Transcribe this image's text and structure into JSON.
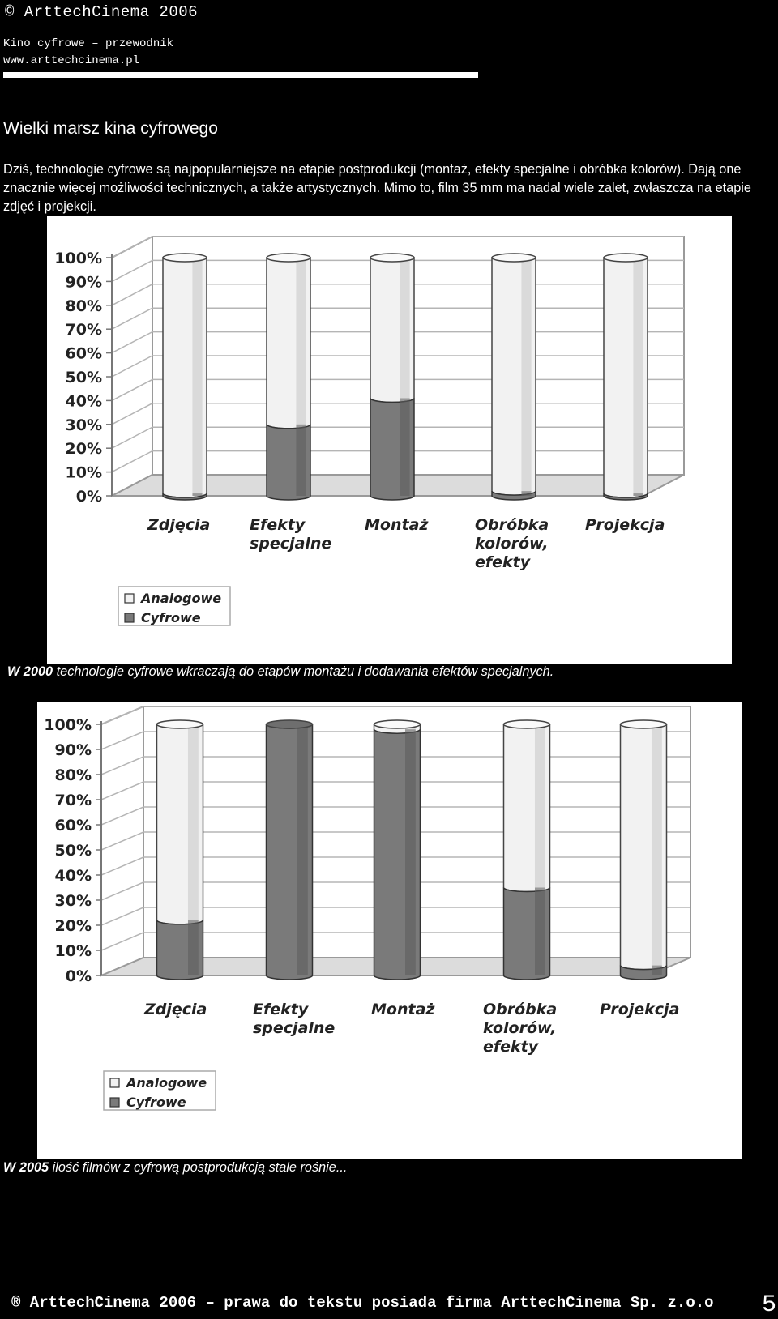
{
  "header": {
    "copyright": "© ArttechCinema 2006",
    "subtitle": "Kino cyfrowe – przewodnik",
    "website": "www.arttechcinema.pl"
  },
  "section_title": "Wielki marsz kina cyfrowego",
  "intro_text": "Dziś, technologie cyfrowe są najpopularniejsze na etapie postprodukcji (montaż, efekty specjalne i obróbka kolorów). Dają one znacznie więcej możliwości technicznych, a także artystycznych. Mimo to, film 35 mm ma nadal wiele zalet, zwłaszcza na etapie zdjęć i projekcji.",
  "chart_data": [
    {
      "type": "bar",
      "stacked": true,
      "style": "3d-cylinder",
      "categories": [
        [
          "Zdjęcia"
        ],
        [
          "Efekty",
          "specjalne"
        ],
        [
          "Montaż"
        ],
        [
          "Obróbka",
          "kolorów,",
          "efekty"
        ],
        [
          "Projekcja"
        ]
      ],
      "series": [
        {
          "name": "Cyfrowe",
          "values": [
            1,
            30,
            41,
            2,
            1
          ]
        },
        {
          "name": "Analogowe",
          "values": [
            99,
            70,
            59,
            98,
            99
          ]
        }
      ],
      "yticks": [
        "0%",
        "10%",
        "20%",
        "30%",
        "40%",
        "50%",
        "60%",
        "70%",
        "80%",
        "90%",
        "100%"
      ],
      "ylim": [
        0,
        100
      ],
      "grid": true,
      "legend": "bottom-left",
      "colors": {
        "Analogowe": "#f2f2f2",
        "Cyfrowe": "#7a7a7a"
      }
    },
    {
      "type": "bar",
      "stacked": true,
      "style": "3d-cylinder",
      "categories": [
        [
          "Zdjęcia"
        ],
        [
          "Efekty",
          "specjalne"
        ],
        [
          "Montaż"
        ],
        [
          "Obróbka",
          "kolorów,",
          "efekty"
        ],
        [
          "Projekcja"
        ]
      ],
      "series": [
        {
          "name": "Cyfrowe",
          "values": [
            22,
            100,
            98,
            35,
            4
          ]
        },
        {
          "name": "Analogowe",
          "values": [
            78,
            0,
            2,
            65,
            96
          ]
        }
      ],
      "yticks": [
        "0%",
        "10%",
        "20%",
        "30%",
        "40%",
        "50%",
        "60%",
        "70%",
        "80%",
        "90%",
        "100%"
      ],
      "ylim": [
        0,
        100
      ],
      "grid": true,
      "legend": "bottom-left",
      "colors": {
        "Analogowe": "#f2f2f2",
        "Cyfrowe": "#7a7a7a"
      }
    }
  ],
  "caption1": {
    "year": "W 2000",
    "text": " technologie cyfrowe wkraczają do etapów montażu i dodawania efektów specjalnych."
  },
  "caption2": {
    "year": "W 2005",
    "text": " ilość filmów z cyfrową postprodukcją stale rośnie..."
  },
  "footer": "® ArttechCinema 2006 – prawa do tekstu posiada firma ArttechCinema Sp. z.o.o",
  "page_number": "5"
}
